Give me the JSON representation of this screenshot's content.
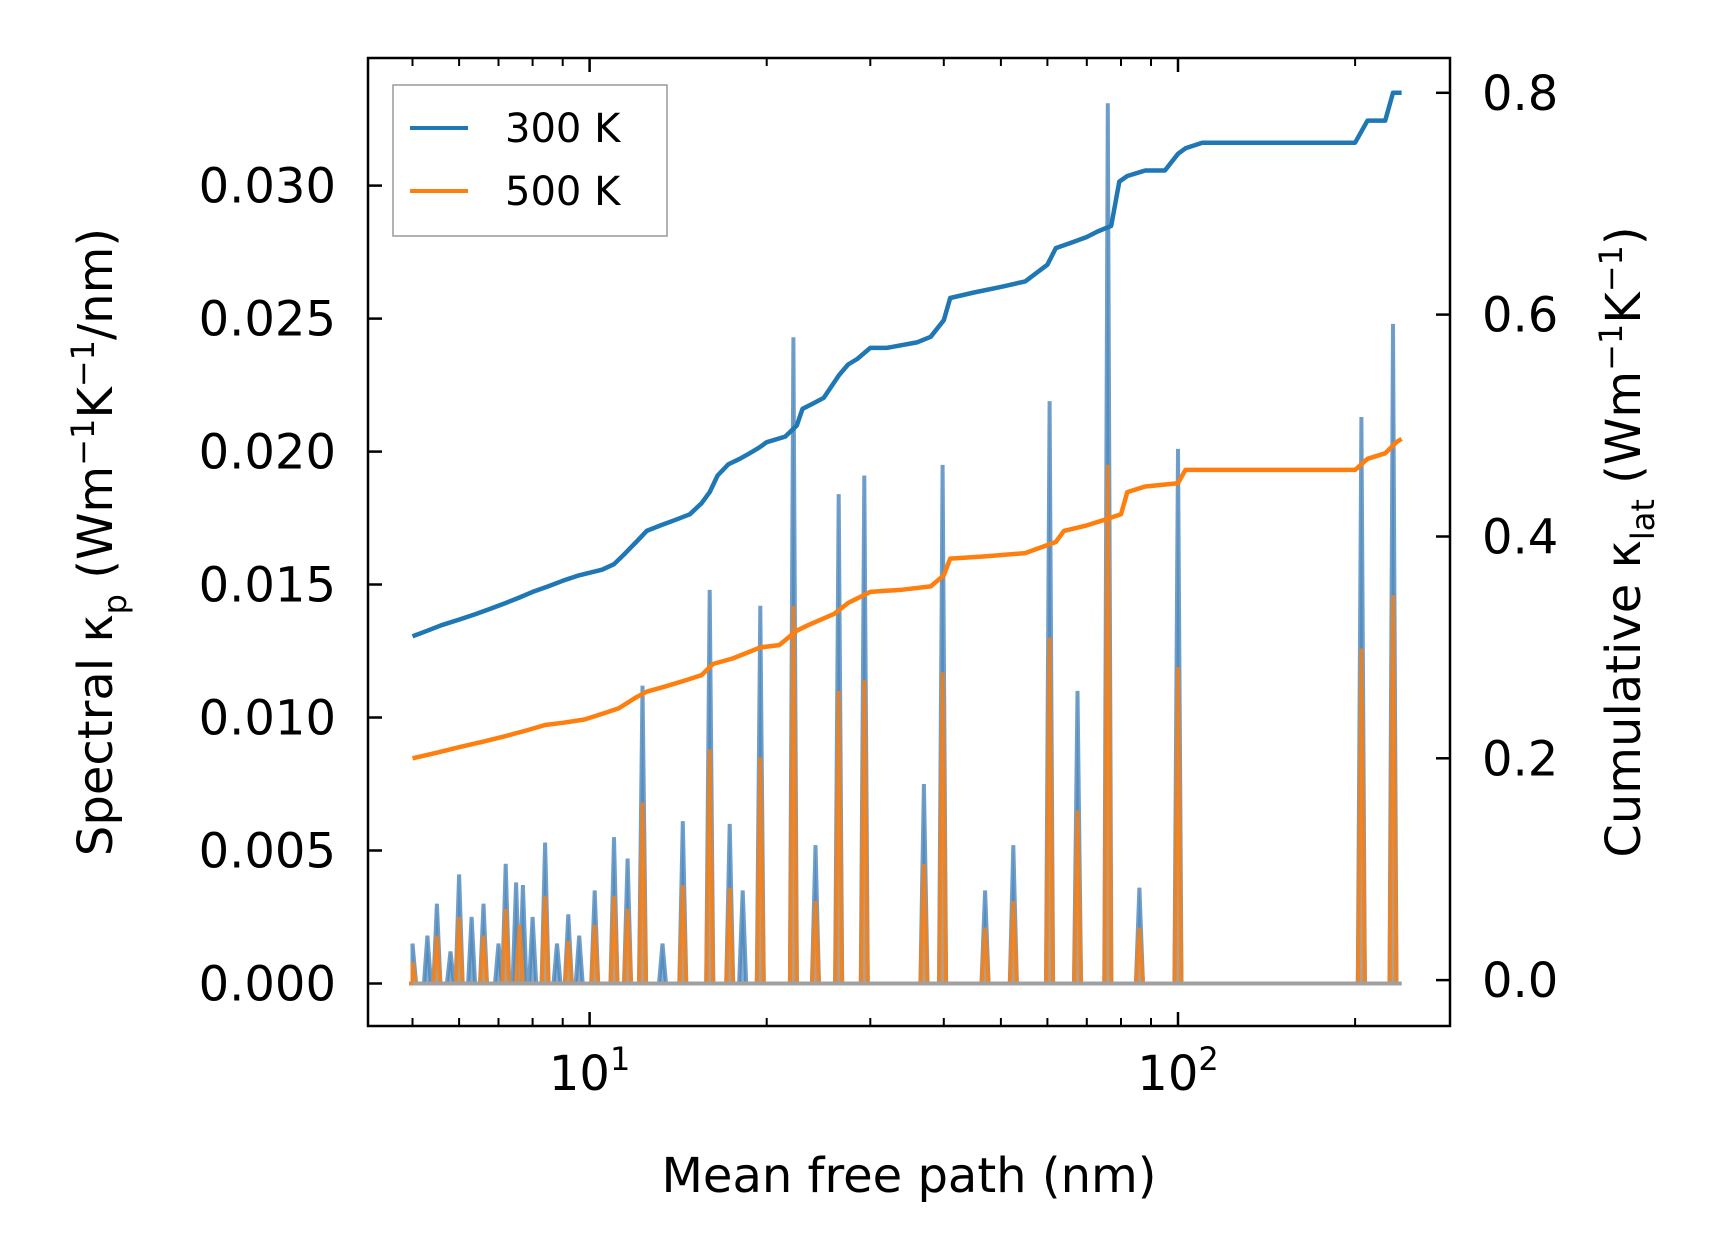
{
  "chart_data": {
    "type": "line",
    "title": "",
    "xlabel": "Mean free path (nm)",
    "ylabel_left": {
      "main": "Spectral κ",
      "sub": "p",
      "unit_open": " (Wm",
      "exp1": "−1",
      "mid": "K",
      "exp2": "−1",
      "unit_close": "/nm)"
    },
    "ylabel_right": {
      "main": "Cumulative κ",
      "sub": "lat",
      "unit_open": " (Wm",
      "exp1": "−1",
      "mid": "K",
      "exp2": "−1",
      "unit_close": ")"
    },
    "xscale": "log",
    "xlim": [
      4.2,
      290
    ],
    "ylim_left": [
      -0.0016,
      0.0348
    ],
    "ylim_right": [
      -0.0414,
      0.8314
    ],
    "x_ticks": [
      {
        "value": 10,
        "base": "10",
        "exp": "1"
      },
      {
        "value": 100,
        "base": "10",
        "exp": "2"
      }
    ],
    "y_ticks_left": [
      "0.000",
      "0.005",
      "0.010",
      "0.015",
      "0.020",
      "0.025",
      "0.030"
    ],
    "y_ticks_right": [
      "0.0",
      "0.2",
      "0.4",
      "0.6",
      "0.8"
    ],
    "legend": {
      "position": "top-left",
      "entries": [
        "300 K",
        "500 K"
      ]
    },
    "colors": {
      "300K": "#1f77b4",
      "500K": "#ff7f0e",
      "fill300": "#5b8fbd",
      "fill500": "#c79b6e"
    },
    "series": [
      {
        "name": "300 K",
        "axis": "right",
        "kind": "cumulative",
        "x": [
          5,
          5.3,
          5.6,
          6.0,
          6.4,
          6.8,
          7.2,
          7.6,
          8.0,
          8.5,
          9.0,
          9.6,
          10.5,
          11.0,
          11.5,
          12.0,
          12.5,
          13.2,
          14.0,
          14.8,
          15.5,
          16.0,
          16.5,
          17.2,
          18.0,
          18.7,
          19.4,
          20.0,
          21.5,
          22.5,
          23.0,
          24.0,
          25.0,
          26.5,
          27.5,
          28.5,
          30.0,
          32.0,
          36.0,
          38.0,
          40.0,
          41.0,
          45.0,
          50.0,
          55.0,
          60.0,
          62.0,
          66.0,
          70.0,
          73.0,
          77.0,
          79.5,
          82.0,
          88.0,
          95.0,
          100.0,
          103.0,
          110.0,
          200.0,
          210.0,
          225.0,
          232.0,
          240.0
        ],
        "values": [
          0.31,
          0.315,
          0.32,
          0.325,
          0.33,
          0.335,
          0.34,
          0.345,
          0.35,
          0.355,
          0.36,
          0.365,
          0.37,
          0.375,
          0.385,
          0.395,
          0.405,
          0.41,
          0.415,
          0.42,
          0.43,
          0.44,
          0.455,
          0.465,
          0.47,
          0.475,
          0.48,
          0.485,
          0.49,
          0.5,
          0.515,
          0.52,
          0.525,
          0.545,
          0.555,
          0.56,
          0.57,
          0.57,
          0.575,
          0.58,
          0.595,
          0.615,
          0.62,
          0.625,
          0.63,
          0.645,
          0.66,
          0.665,
          0.67,
          0.675,
          0.68,
          0.72,
          0.725,
          0.73,
          0.73,
          0.745,
          0.75,
          0.755,
          0.755,
          0.775,
          0.775,
          0.8,
          0.8
        ]
      },
      {
        "name": "500 K",
        "axis": "right",
        "kind": "cumulative",
        "x": [
          5,
          5.5,
          6.0,
          6.6,
          7.2,
          7.8,
          8.4,
          9.0,
          9.8,
          10.5,
          11.2,
          12.0,
          12.5,
          13.5,
          14.5,
          15.5,
          16.2,
          17.5,
          18.5,
          19.5,
          21.0,
          22.5,
          23.5,
          26.0,
          27.5,
          30.0,
          34.0,
          38.0,
          40.0,
          41.0,
          47.0,
          55.0,
          62.0,
          64.0,
          70.0,
          75.0,
          80.0,
          82.0,
          88.0,
          100.0,
          103.0,
          200.0,
          210.0,
          225.0,
          235.0,
          240.0
        ],
        "values": [
          0.2,
          0.205,
          0.21,
          0.215,
          0.22,
          0.225,
          0.23,
          0.232,
          0.235,
          0.24,
          0.245,
          0.255,
          0.26,
          0.265,
          0.27,
          0.275,
          0.285,
          0.29,
          0.295,
          0.3,
          0.302,
          0.315,
          0.32,
          0.33,
          0.34,
          0.35,
          0.352,
          0.355,
          0.365,
          0.38,
          0.382,
          0.385,
          0.395,
          0.405,
          0.41,
          0.415,
          0.42,
          0.44,
          0.445,
          0.448,
          0.46,
          0.46,
          0.47,
          0.475,
          0.485,
          0.488
        ]
      },
      {
        "name": "300 K spectral",
        "axis": "left",
        "kind": "spectral",
        "peaks": [
          [
            5,
            0.0015
          ],
          [
            5.3,
            0.0018
          ],
          [
            5.5,
            0.003
          ],
          [
            5.8,
            0.0012
          ],
          [
            6.0,
            0.0041
          ],
          [
            6.3,
            0.0025
          ],
          [
            6.6,
            0.003
          ],
          [
            7.0,
            0.0015
          ],
          [
            7.2,
            0.0045
          ],
          [
            7.5,
            0.0038
          ],
          [
            7.7,
            0.0037
          ],
          [
            8.0,
            0.0025
          ],
          [
            8.4,
            0.0053
          ],
          [
            8.8,
            0.0015
          ],
          [
            9.2,
            0.0026
          ],
          [
            9.6,
            0.0018
          ],
          [
            10.2,
            0.0035
          ],
          [
            11.0,
            0.0055
          ],
          [
            11.6,
            0.0047
          ],
          [
            12.3,
            0.0112
          ],
          [
            13.3,
            0.0015
          ],
          [
            14.4,
            0.0061
          ],
          [
            16.0,
            0.0148
          ],
          [
            17.3,
            0.006
          ],
          [
            18.2,
            0.0035
          ],
          [
            19.5,
            0.0142
          ],
          [
            22.2,
            0.0243
          ],
          [
            24.2,
            0.0052
          ],
          [
            26.5,
            0.0184
          ],
          [
            29.3,
            0.0191
          ],
          [
            37.0,
            0.0075
          ],
          [
            39.8,
            0.0195
          ],
          [
            47.0,
            0.0035
          ],
          [
            52.5,
            0.0052
          ],
          [
            60.5,
            0.0219
          ],
          [
            67.5,
            0.011
          ],
          [
            76.0,
            0.0331
          ],
          [
            86.0,
            0.0036
          ],
          [
            100.0,
            0.0201
          ],
          [
            205.0,
            0.0213
          ],
          [
            232.0,
            0.0248
          ]
        ]
      },
      {
        "name": "500 K spectral",
        "axis": "left",
        "kind": "spectral",
        "peaks": [
          [
            5,
            0.0008
          ],
          [
            5.5,
            0.0018
          ],
          [
            6.0,
            0.0025
          ],
          [
            6.6,
            0.0018
          ],
          [
            7.2,
            0.0028
          ],
          [
            7.6,
            0.0022
          ],
          [
            8.4,
            0.0033
          ],
          [
            9.2,
            0.0016
          ],
          [
            10.2,
            0.0022
          ],
          [
            11.0,
            0.0033
          ],
          [
            11.6,
            0.0028
          ],
          [
            12.3,
            0.0068
          ],
          [
            14.4,
            0.0037
          ],
          [
            16.0,
            0.0088
          ],
          [
            17.3,
            0.0036
          ],
          [
            19.5,
            0.0085
          ],
          [
            22.2,
            0.0142
          ],
          [
            24.2,
            0.0031
          ],
          [
            26.5,
            0.011
          ],
          [
            29.3,
            0.0114
          ],
          [
            37.0,
            0.0045
          ],
          [
            39.8,
            0.0117
          ],
          [
            47.0,
            0.0021
          ],
          [
            52.5,
            0.0031
          ],
          [
            60.5,
            0.013
          ],
          [
            67.5,
            0.0065
          ],
          [
            76.0,
            0.0195
          ],
          [
            86.0,
            0.0021
          ],
          [
            100.0,
            0.0119
          ],
          [
            205.0,
            0.0126
          ],
          [
            232.0,
            0.0146
          ]
        ]
      }
    ]
  }
}
